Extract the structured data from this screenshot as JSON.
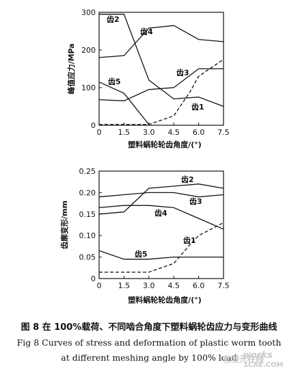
{
  "chart_data": [
    {
      "type": "line",
      "ylabel": "峰值应力/MPa",
      "xlabel": "塑料蜗轮轮齿角度/(°)",
      "xlim": [
        0,
        7.5
      ],
      "ylim": [
        0,
        300
      ],
      "x_ticks": [
        "0",
        "1.5",
        "3.0",
        "4.5",
        "6.0",
        "7.5"
      ],
      "y_ticks": [
        "0",
        "100",
        "200",
        "300"
      ],
      "series": [
        {
          "name": "齿1",
          "style": "dashed",
          "x": [
            0,
            1.5,
            3.0,
            4.5,
            5.5,
            6.0,
            7.5
          ],
          "y": [
            2,
            2,
            2,
            25,
            90,
            130,
            175
          ]
        },
        {
          "name": "齿2",
          "style": "solid",
          "x": [
            0,
            1.5,
            3.0,
            4.5,
            6.0,
            7.5
          ],
          "y": [
            295,
            295,
            120,
            70,
            75,
            50
          ]
        },
        {
          "name": "齿3",
          "style": "solid",
          "x": [
            0,
            1.5,
            3.0,
            4.5,
            6.0,
            7.5
          ],
          "y": [
            68,
            65,
            95,
            100,
            150,
            150
          ]
        },
        {
          "name": "齿4",
          "style": "solid",
          "x": [
            0,
            1.5,
            3.0,
            4.5,
            6.0,
            7.5
          ],
          "y": [
            180,
            185,
            258,
            265,
            228,
            222
          ]
        },
        {
          "name": "齿5",
          "style": "solid",
          "x": [
            0,
            1.5,
            3.0
          ],
          "y": [
            115,
            85,
            2
          ]
        }
      ]
    },
    {
      "type": "line",
      "ylabel": "齿廓变形/mm",
      "xlabel": "塑料蜗轮轮齿角度/(°)",
      "xlim": [
        0,
        7.5
      ],
      "ylim": [
        0,
        0.25
      ],
      "x_ticks": [
        "0",
        "1.5",
        "3.0",
        "4.5",
        "6.0",
        "7.5"
      ],
      "y_ticks": [
        "0",
        "0.05",
        "0.10",
        "0.15",
        "0.20",
        "0.25"
      ],
      "series": [
        {
          "name": "齿1",
          "style": "dashed",
          "x": [
            0,
            1.5,
            3.0,
            4.5,
            5.5,
            6.0,
            7.5
          ],
          "y": [
            0.015,
            0.015,
            0.015,
            0.035,
            0.08,
            0.1,
            0.13
          ]
        },
        {
          "name": "齿2",
          "style": "solid",
          "x": [
            0,
            1.5,
            3.0,
            4.5,
            6.0,
            7.5
          ],
          "y": [
            0.19,
            0.195,
            0.2,
            0.2,
            0.19,
            0.195
          ]
        },
        {
          "name": "齿3",
          "style": "solid",
          "x": [
            0,
            1.5,
            3.0,
            4.5,
            6.0,
            7.5
          ],
          "y": [
            0.15,
            0.155,
            0.21,
            0.215,
            0.22,
            0.21
          ]
        },
        {
          "name": "齿4",
          "style": "solid",
          "x": [
            0,
            1.5,
            3.0,
            4.5,
            6.0,
            7.5
          ],
          "y": [
            0.165,
            0.17,
            0.17,
            0.165,
            0.14,
            0.115
          ]
        },
        {
          "name": "齿5",
          "style": "solid",
          "x": [
            0,
            1.5,
            3.0,
            4.5,
            6.0,
            7.5
          ],
          "y": [
            0.065,
            0.045,
            0.045,
            0.05,
            0.05,
            0.05
          ]
        }
      ]
    }
  ],
  "caption": {
    "zh": "图 8   在 100%载荷、不同啮合角度下塑料蜗轮齿应力与变形曲线",
    "en_line1": "Fig 8  Curves of stress and deformation of plastic worm tooth",
    "en_line2": "at different meshing angle by 100% load"
  },
  "watermark": {
    "brand": "works",
    "site": "1CAE.COM",
    "cn": "有限元在线"
  }
}
